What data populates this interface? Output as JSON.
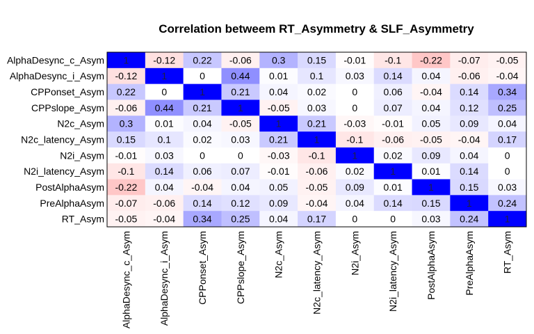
{
  "chart_data": {
    "type": "heatmap",
    "title": "Correlation betweem RT_Asymmetry & SLF_Asymmetry",
    "row_labels": [
      "AlphaDesync_c_Asym",
      "AlphaDesync_i_Asym",
      "CPPonset_Asym",
      "CPPslope_Asym",
      "N2c_Asym",
      "N2c_latency_Asym",
      "N2i_Asym",
      "N2i_latency_Asym",
      "PostAlphaAsym",
      "PreAlphaAsym",
      "RT_Asym"
    ],
    "col_labels": [
      "AlphaDesync_c_Asym",
      "AlphaDesync_i_Asym",
      "CPPonset_Asym",
      "CPPslope_Asym",
      "N2c_Asym",
      "N2c_latency_Asym",
      "N2i_Asym",
      "N2i_latency_Asym",
      "PostAlphaAsym",
      "PreAlphaAsym",
      "RT_Asym"
    ],
    "values": [
      [
        1,
        -0.12,
        0.22,
        -0.06,
        0.3,
        0.15,
        -0.01,
        -0.1,
        -0.22,
        -0.07,
        -0.05
      ],
      [
        -0.12,
        1,
        0,
        0.44,
        0.01,
        0.1,
        0.03,
        0.14,
        0.04,
        -0.06,
        -0.04
      ],
      [
        0.22,
        0,
        1,
        0.21,
        0.04,
        0.02,
        0,
        0.06,
        -0.04,
        0.14,
        0.34
      ],
      [
        -0.06,
        0.44,
        0.21,
        1,
        -0.05,
        0.03,
        0,
        0.07,
        0.04,
        0.12,
        0.25
      ],
      [
        0.3,
        0.01,
        0.04,
        -0.05,
        1,
        0.21,
        -0.03,
        -0.01,
        0.05,
        0.09,
        0.04
      ],
      [
        0.15,
        0.1,
        0.02,
        0.03,
        0.21,
        1,
        -0.1,
        -0.06,
        -0.05,
        -0.04,
        0.17
      ],
      [
        -0.01,
        0.03,
        0,
        0,
        -0.03,
        -0.1,
        1,
        0.02,
        0.09,
        0.04,
        0
      ],
      [
        -0.1,
        0.14,
        0.06,
        0.07,
        -0.01,
        -0.06,
        0.02,
        1,
        0.01,
        0.14,
        0
      ],
      [
        -0.22,
        0.04,
        -0.04,
        0.04,
        0.05,
        -0.05,
        0.09,
        0.01,
        1,
        0.15,
        0.03
      ],
      [
        -0.07,
        -0.06,
        0.14,
        0.12,
        0.09,
        -0.04,
        0.04,
        0.14,
        0.15,
        1,
        0.24
      ],
      [
        -0.05,
        -0.04,
        0.34,
        0.25,
        0.04,
        0.17,
        0,
        0,
        0.03,
        0.24,
        1
      ]
    ],
    "color_scale": {
      "min": -1,
      "max": 1,
      "low_color": "#ff0000",
      "mid_color": "#ffffff",
      "high_color": "#0000ff"
    },
    "legend": "none"
  }
}
